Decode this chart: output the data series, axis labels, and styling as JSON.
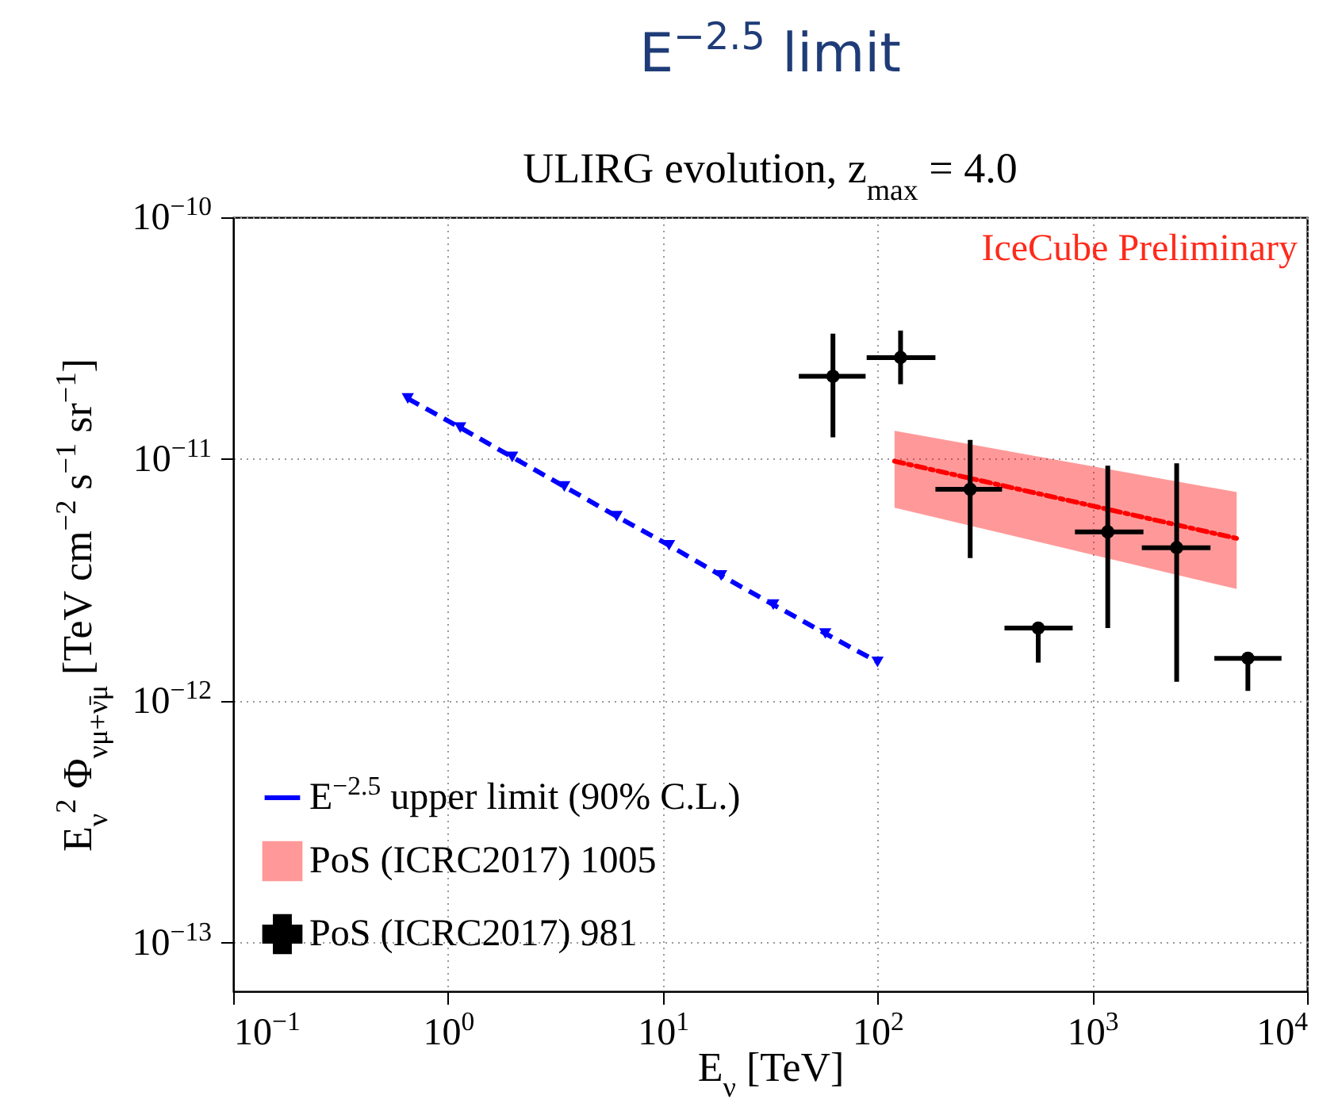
{
  "chart_data": {
    "type": "line",
    "title": "E$^{−2.5}$ limit",
    "subtitle": "ULIRG evolution,  z$_{max}$ = 4.0",
    "xlabel": "E$_{ν}$ [TeV]",
    "ylabel": "E$_{ν}$$^{2}$ Φ$_{νμ+ν̄μ}$ [TeV cm$^{−2}$ s$^{−1}$ sr$^{−1}$]",
    "log": "xy",
    "grid": true,
    "legend": "bottom left",
    "xlim": [
      0.1,
      10000
    ],
    "ylim": [
      6.3e-14,
      1e-10
    ],
    "xticks": [
      {
        "value": 0.1,
        "label": "10$^{−1}$"
      },
      {
        "value": 1,
        "label": "10$^{0}$"
      },
      {
        "value": 10,
        "label": "10$^{1}$"
      },
      {
        "value": 100,
        "label": "10$^{2}$"
      },
      {
        "value": 1000,
        "label": "10$^{3}$"
      },
      {
        "value": 10000,
        "label": "10$^{4}$"
      }
    ],
    "yticks": [
      {
        "value": 1e-13,
        "label": "10$^{−13}$"
      },
      {
        "value": 1e-12,
        "label": "10$^{−12}$"
      },
      {
        "value": 1e-11,
        "label": "10$^{−11}$"
      },
      {
        "value": 1e-10,
        "label": "10$^{−10}$"
      }
    ],
    "annotations": [
      "IceCube Preliminary"
    ],
    "series": [
      {
        "name": "E$^{−2.5}$ upper limit (90% C.L.)",
        "type": "line",
        "color": "#0000ff",
        "line_style": "dashed",
        "marker": "triangle",
        "x": [
          0.65,
          1.14,
          1.99,
          3.48,
          6.1,
          10.7,
          18.7,
          32.7,
          57.1,
          100
        ],
        "values": [
          1.78e-11,
          1.35e-11,
          1.02e-11,
          7.7e-12,
          5.8e-12,
          4.4e-12,
          3.3e-12,
          2.5e-12,
          1.9e-12,
          1.45e-12
        ]
      },
      {
        "name": "PoS (ICRC2017) 1005",
        "type": "line",
        "color": "#ff0000",
        "line_style": "dotted",
        "x": [
          120,
          4700
        ],
        "values": [
          9.8e-12,
          4.7e-12
        ],
        "lower": [
          6.3e-12,
          2.9e-12
        ],
        "upper": [
          1.31e-11,
          7.3e-12
        ]
      },
      {
        "name": "PoS (ICRC2017) 981",
        "type": "scatter",
        "color": "#000000",
        "marker": "circle",
        "x": [
          62,
          128,
          270,
          560,
          1180,
          2470,
          5300
        ],
        "values": [
          2.2e-11,
          2.63e-11,
          7.5e-12,
          2e-12,
          5e-12,
          4.3e-12,
          1.5e-12
        ],
        "errors": [
          [
            1.23e-11,
            3.3e-11
          ],
          [
            2.04e-11,
            3.4e-11
          ],
          [
            3.9e-12,
            1.2e-11
          ],
          [
            1.44e-12,
            2e-12
          ],
          [
            2e-12,
            9.4e-12
          ],
          [
            1.2e-12,
            9.6e-12
          ],
          [
            1.1e-12,
            1.5e-12
          ]
        ],
        "xerrors": [
          [
            43,
            88
          ],
          [
            89,
            186
          ],
          [
            186,
            380
          ],
          [
            390,
            810
          ],
          [
            830,
            1730
          ],
          [
            1700,
            3550
          ],
          [
            3700,
            7600
          ]
        ]
      }
    ]
  }
}
